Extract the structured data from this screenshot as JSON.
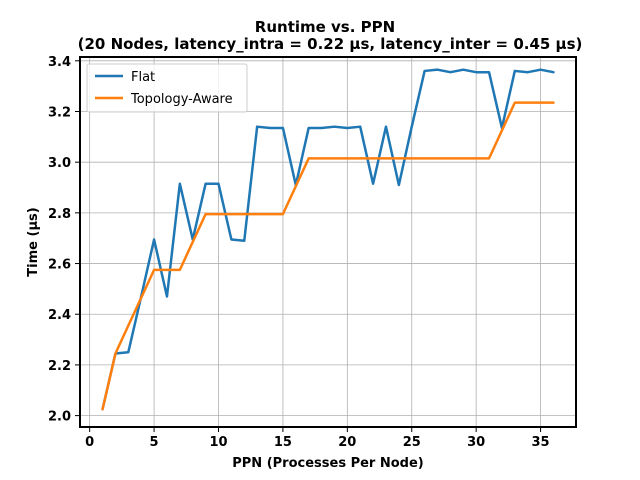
{
  "chart_data": {
    "type": "line",
    "title": "Runtime vs. PPN",
    "subtitle": "(20 Nodes, latency_intra = 0.22 μs, latency_inter = 0.45 μs)",
    "xlabel": "PPN (Processes Per Node)",
    "ylabel": "Time (μs)",
    "xlim": [
      -0.75,
      37.75
    ],
    "ylim": [
      1.955,
      3.415
    ],
    "xticks": [
      0,
      5,
      10,
      15,
      20,
      25,
      30,
      35
    ],
    "yticks": [
      2.0,
      2.2,
      2.4,
      2.6,
      2.8,
      3.0,
      3.2,
      3.4
    ],
    "xtick_labels": [
      "0",
      "5",
      "10",
      "15",
      "20",
      "25",
      "30",
      "35"
    ],
    "ytick_labels": [
      "2.0",
      "2.2",
      "2.4",
      "2.6",
      "2.8",
      "3.0",
      "3.2",
      "3.4"
    ],
    "grid": true,
    "legend_position": "top-left",
    "x": [
      1,
      2,
      3,
      4,
      5,
      6,
      7,
      8,
      9,
      10,
      11,
      12,
      13,
      14,
      15,
      16,
      17,
      18,
      19,
      20,
      21,
      22,
      23,
      24,
      25,
      26,
      27,
      28,
      29,
      30,
      31,
      32,
      33,
      34,
      35,
      36
    ],
    "series": [
      {
        "name": "Flat",
        "color": "#1f77b4",
        "values": [
          2.025,
          2.245,
          2.25,
          2.47,
          2.695,
          2.47,
          2.915,
          2.695,
          2.915,
          2.915,
          2.695,
          2.69,
          3.14,
          3.135,
          3.135,
          2.91,
          3.135,
          3.135,
          3.14,
          3.135,
          3.14,
          2.915,
          3.14,
          2.91,
          3.14,
          3.36,
          3.365,
          3.355,
          3.365,
          3.355,
          3.355,
          3.135,
          3.36,
          3.355,
          3.365,
          3.355
        ]
      },
      {
        "name": "Topology-Aware",
        "color": "#ff7f0e",
        "values": [
          2.025,
          2.245,
          2.355,
          2.465,
          2.575,
          2.575,
          2.575,
          2.685,
          2.795,
          2.795,
          2.795,
          2.795,
          2.795,
          2.795,
          2.795,
          2.905,
          3.015,
          3.015,
          3.015,
          3.015,
          3.015,
          3.015,
          3.015,
          3.015,
          3.015,
          3.015,
          3.015,
          3.015,
          3.015,
          3.015,
          3.015,
          3.125,
          3.235,
          3.235,
          3.235,
          3.235
        ]
      }
    ]
  }
}
